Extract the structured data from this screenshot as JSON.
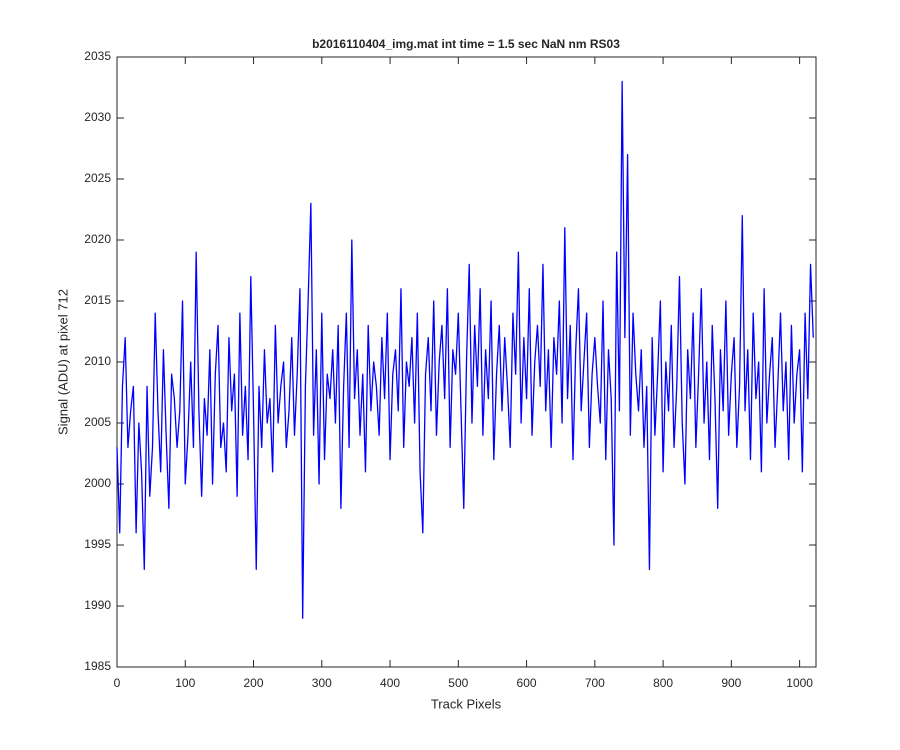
{
  "chart_data": {
    "type": "line",
    "title": "b2016110404_img.mat int time = 1.5 sec  NaN nm RS03",
    "x_label": "Track Pixels",
    "y_label": "Signal (ADU) at pixel 712",
    "xlim": [
      0,
      1024
    ],
    "ylim": [
      1985,
      2035
    ],
    "xticks": [
      0,
      100,
      200,
      300,
      400,
      500,
      600,
      700,
      800,
      900,
      1000
    ],
    "yticks": [
      1985,
      1990,
      1995,
      2000,
      2005,
      2010,
      2015,
      2020,
      2025,
      2030,
      2035
    ],
    "grid": false,
    "x": [
      0,
      4,
      8,
      12,
      16,
      20,
      24,
      28,
      32,
      36,
      40,
      44,
      48,
      52,
      56,
      60,
      64,
      68,
      72,
      76,
      80,
      84,
      88,
      92,
      96,
      100,
      104,
      108,
      112,
      116,
      120,
      124,
      128,
      132,
      136,
      140,
      144,
      148,
      152,
      156,
      160,
      164,
      168,
      172,
      176,
      180,
      184,
      188,
      192,
      196,
      200,
      204,
      208,
      212,
      216,
      220,
      224,
      228,
      232,
      236,
      240,
      244,
      248,
      252,
      256,
      260,
      264,
      268,
      272,
      276,
      280,
      284,
      288,
      292,
      296,
      300,
      304,
      308,
      312,
      316,
      320,
      324,
      328,
      332,
      336,
      340,
      344,
      348,
      352,
      356,
      360,
      364,
      368,
      372,
      376,
      380,
      384,
      388,
      392,
      396,
      400,
      404,
      408,
      412,
      416,
      420,
      424,
      428,
      432,
      436,
      440,
      444,
      448,
      452,
      456,
      460,
      464,
      468,
      472,
      476,
      480,
      484,
      488,
      492,
      496,
      500,
      504,
      508,
      512,
      516,
      520,
      524,
      528,
      532,
      536,
      540,
      544,
      548,
      552,
      556,
      560,
      564,
      568,
      572,
      576,
      580,
      584,
      588,
      592,
      596,
      600,
      604,
      608,
      612,
      616,
      620,
      624,
      628,
      632,
      636,
      640,
      644,
      648,
      652,
      656,
      660,
      664,
      668,
      672,
      676,
      680,
      684,
      688,
      692,
      696,
      700,
      704,
      708,
      712,
      716,
      720,
      724,
      728,
      732,
      736,
      740,
      744,
      748,
      752,
      756,
      760,
      764,
      768,
      772,
      776,
      780,
      784,
      788,
      792,
      796,
      800,
      804,
      808,
      812,
      816,
      820,
      824,
      828,
      832,
      836,
      840,
      844,
      848,
      852,
      856,
      860,
      864,
      868,
      872,
      876,
      880,
      884,
      888,
      892,
      896,
      900,
      904,
      908,
      912,
      916,
      920,
      924,
      928,
      932,
      936,
      940,
      944,
      948,
      952,
      956,
      960,
      964,
      968,
      972,
      976,
      980,
      984,
      988,
      992,
      996,
      1000,
      1004,
      1008,
      1012,
      1016,
      1020
    ],
    "series": [
      {
        "name": "signal",
        "color": "#0000ff",
        "values": [
          2003,
          1996,
          2008,
          2012,
          2003,
          2006,
          2008,
          1996,
          2005,
          2001,
          1993,
          2008,
          1999,
          2003,
          2014,
          2006,
          2001,
          2011,
          2004,
          1998,
          2009,
          2007,
          2003,
          2006,
          2015,
          2000,
          2004,
          2010,
          2003,
          2019,
          2006,
          1999,
          2007,
          2004,
          2011,
          2000,
          2009,
          2013,
          2003,
          2005,
          2001,
          2012,
          2006,
          2009,
          1999,
          2014,
          2004,
          2008,
          2002,
          2017,
          2006,
          1993,
          2008,
          2003,
          2011,
          2005,
          2007,
          2001,
          2013,
          2005,
          2008,
          2010,
          2003,
          2006,
          2012,
          2004,
          2009,
          2016,
          1989,
          2008,
          2015,
          2023,
          2004,
          2011,
          2000,
          2014,
          2002,
          2009,
          2007,
          2011,
          2005,
          2013,
          1998,
          2008,
          2014,
          2003,
          2020,
          2007,
          2011,
          2004,
          2009,
          2001,
          2013,
          2006,
          2010,
          2008,
          2004,
          2012,
          2007,
          2014,
          2002,
          2009,
          2011,
          2006,
          2016,
          2003,
          2010,
          2008,
          2012,
          2005,
          2014,
          2001,
          1996,
          2009,
          2012,
          2006,
          2015,
          2004,
          2010,
          2013,
          2007,
          2016,
          2003,
          2011,
          2009,
          2014,
          2006,
          1998,
          2010,
          2018,
          2005,
          2013,
          2008,
          2016,
          2004,
          2011,
          2007,
          2015,
          2002,
          2009,
          2013,
          2006,
          2012,
          2008,
          2003,
          2014,
          2009,
          2019,
          2005,
          2012,
          2007,
          2016,
          2004,
          2010,
          2013,
          2008,
          2018,
          2006,
          2011,
          2003,
          2012,
          2009,
          2015,
          2005,
          2021,
          2007,
          2013,
          2002,
          2011,
          2016,
          2006,
          2010,
          2014,
          2003,
          2009,
          2012,
          2008,
          2005,
          2015,
          2002,
          2011,
          2007,
          1995,
          2019,
          2006,
          2033,
          2012,
          2027,
          2004,
          2014,
          2009,
          2006,
          2011,
          2003,
          2008,
          1993,
          2012,
          2004,
          2009,
          2015,
          2001,
          2010,
          2006,
          2013,
          2003,
          2008,
          2017,
          2005,
          2000,
          2011,
          2007,
          2014,
          2003,
          2009,
          2016,
          2005,
          2010,
          2002,
          2013,
          2007,
          1998,
          2011,
          2006,
          2015,
          2004,
          2009,
          2012,
          2003,
          2008,
          2022,
          2006,
          2011,
          2002,
          2014,
          2007,
          2010,
          2001,
          2016,
          2005,
          2009,
          2012,
          2003,
          2008,
          2014,
          2006,
          2010,
          2002,
          2013,
          2005,
          2009,
          2011,
          2001,
          2014,
          2007,
          2018,
          2012
        ]
      }
    ]
  }
}
